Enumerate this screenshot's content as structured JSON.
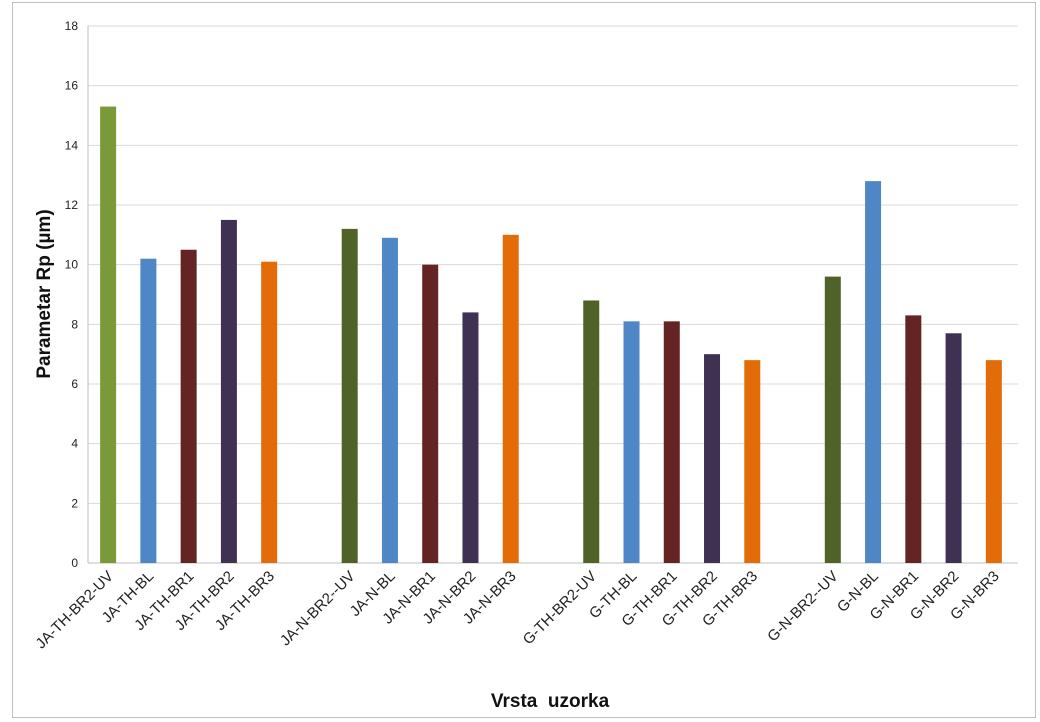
{
  "chart_data": {
    "type": "bar",
    "title": "",
    "xlabel": "Vrsta  uzorka",
    "ylabel": "Parametar Rp (µm)",
    "ylim": [
      0,
      18
    ],
    "yticks": [
      0,
      2,
      4,
      6,
      8,
      10,
      12,
      14,
      16,
      18
    ],
    "grid": true,
    "legend": "none",
    "groups": [
      {
        "categories": [
          "JA-TH-BR2-UV",
          "JA-TH-BL",
          "JA-TH-BR1",
          "JA-TH-BR2",
          "JA-TH-BR3"
        ],
        "values": [
          15.3,
          10.2,
          10.5,
          11.5,
          10.1
        ]
      },
      {
        "categories": [
          "JA-N-BR2--UV",
          "JA-N-BL",
          "JA-N-BR1",
          "JA-N-BR2",
          "JA-N-BR3"
        ],
        "values": [
          11.2,
          10.9,
          10.0,
          8.4,
          11.0
        ]
      },
      {
        "categories": [
          "G-TH-BR2-UV",
          "G-TH-BL",
          "G-TH-BR1",
          "G-TH-BR2",
          "G-TH-BR3"
        ],
        "values": [
          8.8,
          8.1,
          8.1,
          7.0,
          6.8
        ]
      },
      {
        "categories": [
          "G-N-BR2--UV",
          "G-N-BL",
          "G-N-BR1",
          "G-N-BR2",
          "G-N-BR3"
        ],
        "values": [
          9.6,
          12.8,
          8.3,
          7.7,
          6.8
        ]
      }
    ],
    "group_colors": [
      [
        "#7a9a3a",
        "#4f86c6",
        "#632423",
        "#3f3151",
        "#e36c09"
      ],
      [
        "#4f6228",
        "#4f86c6",
        "#632423",
        "#3f3151",
        "#e36c09"
      ],
      [
        "#4f6228",
        "#4f86c6",
        "#632423",
        "#3f3151",
        "#e36c09"
      ],
      [
        "#4f6228",
        "#4f86c6",
        "#632423",
        "#3f3151",
        "#e36c09"
      ]
    ],
    "gridline_color": "#d9d9d9",
    "axis_color": "#bfbfbf"
  }
}
